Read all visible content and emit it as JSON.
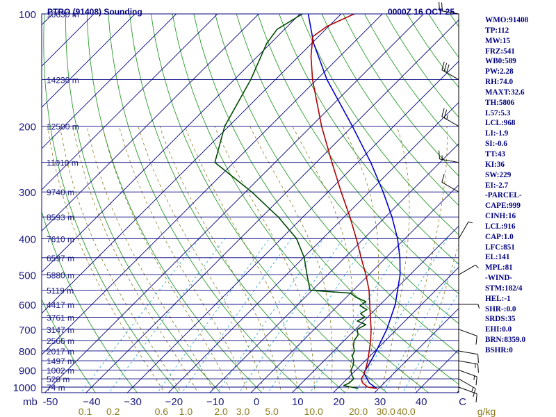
{
  "title": "PTRO (91408) Sounding",
  "datetime": "0000Z 16 OCT 25",
  "chart_data": {
    "type": "line",
    "pressure_levels_mb": [
      100,
      200,
      300,
      400,
      500,
      600,
      700,
      800,
      900,
      1000
    ],
    "pressure_tick_labels": [
      "100",
      "200",
      "300",
      "400",
      "500",
      "600",
      "700",
      "800",
      "900",
      "1000"
    ],
    "height_levels": [
      {
        "p": 100,
        "label": "16630 m"
      },
      {
        "p": 150,
        "label": "14230 m"
      },
      {
        "p": 200,
        "label": "12500 m"
      },
      {
        "p": 250,
        "label": "11010 m"
      },
      {
        "p": 300,
        "label": "9740 m"
      },
      {
        "p": 350,
        "label": "8593 m"
      },
      {
        "p": 400,
        "label": "7610 m"
      },
      {
        "p": 450,
        "label": "6597 m"
      },
      {
        "p": 500,
        "label": "5880 m"
      },
      {
        "p": 550,
        "label": "5119 m"
      },
      {
        "p": 600,
        "label": "4417 m"
      },
      {
        "p": 650,
        "label": "3761 m"
      },
      {
        "p": 700,
        "label": "3147 m"
      },
      {
        "p": 750,
        "label": "2566 m"
      },
      {
        "p": 800,
        "label": "2017 m"
      },
      {
        "p": 850,
        "label": "1497 m"
      },
      {
        "p": 900,
        "label": "1002 m"
      },
      {
        "p": 950,
        "label": "528 m"
      },
      {
        "p": 1000,
        "label": "74 m"
      }
    ],
    "temperature_ticks_c": [
      -50,
      -40,
      -30,
      -20,
      -10,
      0,
      10,
      20,
      30,
      40,
      50
    ],
    "temperature_tick_labels": [
      "-50",
      "−40",
      "−30",
      "−20",
      "−10",
      "0",
      "10",
      "20",
      "30",
      "40",
      "C"
    ],
    "x_axis_unit_label": "mb",
    "mixing_ratio_labels": [
      "0.1",
      "0.2",
      "0.6",
      "1.0",
      "2.0",
      "3.0",
      "5.0",
      "10.0",
      "20.0",
      "30.0",
      "40.0",
      "g/kg"
    ],
    "temperature_profile": [
      {
        "p": 1008,
        "t": 29.5
      },
      {
        "p": 1000,
        "t": 27.0
      },
      {
        "p": 975,
        "t": 24.8
      },
      {
        "p": 950,
        "t": 23.4
      },
      {
        "p": 925,
        "t": 23.0
      },
      {
        "p": 900,
        "t": 22.3
      },
      {
        "p": 850,
        "t": 20.6
      },
      {
        "p": 800,
        "t": 18.6
      },
      {
        "p": 750,
        "t": 16.4
      },
      {
        "p": 700,
        "t": 13.8
      },
      {
        "p": 650,
        "t": 10.7
      },
      {
        "p": 600,
        "t": 7.4
      },
      {
        "p": 550,
        "t": 3.8
      },
      {
        "p": 500,
        "t": -0.7
      },
      {
        "p": 450,
        "t": -6.0
      },
      {
        "p": 400,
        "t": -11.8
      },
      {
        "p": 350,
        "t": -18.6
      },
      {
        "p": 300,
        "t": -26.8
      },
      {
        "p": 250,
        "t": -36.2
      },
      {
        "p": 200,
        "t": -47.5
      },
      {
        "p": 150,
        "t": -61.0
      },
      {
        "p": 130,
        "t": -67.0
      },
      {
        "p": 115,
        "t": -71.4
      },
      {
        "p": 108,
        "t": -70.4
      },
      {
        "p": 100,
        "t": -66.8
      }
    ],
    "dewpoint_profile": [
      {
        "p": 1008,
        "t": 25.0
      },
      {
        "p": 1000,
        "t": 23.0
      },
      {
        "p": 990,
        "t": 20.8
      },
      {
        "p": 975,
        "t": 21.5
      },
      {
        "p": 950,
        "t": 21.6
      },
      {
        "p": 925,
        "t": 20.0
      },
      {
        "p": 900,
        "t": 18.8
      },
      {
        "p": 875,
        "t": 18.2
      },
      {
        "p": 850,
        "t": 17.2
      },
      {
        "p": 825,
        "t": 15.7
      },
      {
        "p": 800,
        "t": 15.0
      },
      {
        "p": 775,
        "t": 13.5
      },
      {
        "p": 750,
        "t": 12.4
      },
      {
        "p": 725,
        "t": 12.0
      },
      {
        "p": 700,
        "t": 10.4
      },
      {
        "p": 680,
        "t": 11.4
      },
      {
        "p": 665,
        "t": 8.4
      },
      {
        "p": 650,
        "t": 9.4
      },
      {
        "p": 635,
        "t": 7.4
      },
      {
        "p": 620,
        "t": 8.0
      },
      {
        "p": 605,
        "t": 5.4
      },
      {
        "p": 590,
        "t": 5.8
      },
      {
        "p": 575,
        "t": 2.4
      },
      {
        "p": 560,
        "t": 0.0
      },
      {
        "p": 550,
        "t": -10.5
      },
      {
        "p": 500,
        "t": -15.0
      },
      {
        "p": 450,
        "t": -19.8
      },
      {
        "p": 400,
        "t": -26.3
      },
      {
        "p": 350,
        "t": -36.0
      },
      {
        "p": 300,
        "t": -48.5
      },
      {
        "p": 250,
        "t": -64.6
      },
      {
        "p": 200,
        "t": -71.0
      },
      {
        "p": 150,
        "t": -76.0
      },
      {
        "p": 120,
        "t": -80.9
      },
      {
        "p": 110,
        "t": -81.8
      },
      {
        "p": 100,
        "t": -79.4
      }
    ],
    "parcel_profile": [
      {
        "p": 1008,
        "t": 29.5
      },
      {
        "p": 975,
        "t": 26.4
      },
      {
        "p": 916,
        "t": 22.6
      },
      {
        "p": 850,
        "t": 21.4
      },
      {
        "p": 800,
        "t": 20.3
      },
      {
        "p": 700,
        "t": 17.6
      },
      {
        "p": 600,
        "t": 13.6
      },
      {
        "p": 500,
        "t": 7.6
      },
      {
        "p": 450,
        "t": 3.4
      },
      {
        "p": 400,
        "t": -1.8
      },
      {
        "p": 350,
        "t": -8.4
      },
      {
        "p": 300,
        "t": -16.6
      },
      {
        "p": 250,
        "t": -26.8
      },
      {
        "p": 200,
        "t": -40.0
      },
      {
        "p": 150,
        "t": -57.5
      },
      {
        "p": 120,
        "t": -69.5
      },
      {
        "p": 100,
        "t": -78.0
      }
    ],
    "wind_barbs": [
      {
        "p": 1000,
        "dir": 110,
        "spd": 10
      },
      {
        "p": 950,
        "dir": 120,
        "spd": 15
      },
      {
        "p": 900,
        "dir": 110,
        "spd": 15
      },
      {
        "p": 850,
        "dir": 100,
        "spd": 15
      },
      {
        "p": 800,
        "dir": 100,
        "spd": 10
      },
      {
        "p": 700,
        "dir": 110,
        "spd": 10
      },
      {
        "p": 600,
        "dir": 90,
        "spd": 5
      },
      {
        "p": 500,
        "dir": 60,
        "spd": 5
      },
      {
        "p": 400,
        "dir": 30,
        "spd": 5
      },
      {
        "p": 300,
        "dir": 300,
        "spd": 10
      },
      {
        "p": 250,
        "dir": 280,
        "spd": 15
      },
      {
        "p": 200,
        "dir": 300,
        "spd": 25
      },
      {
        "p": 150,
        "dir": 300,
        "spd": 30
      },
      {
        "p": 100,
        "dir": 280,
        "spd": 20
      }
    ],
    "colors": {
      "background": "#ffffff",
      "frame": "#000080",
      "isobar": "#000080",
      "isotherm": "#000080",
      "dry_adiabat": "#2a9a2a",
      "mixing_ratio": "#30a8d0",
      "moist_adiabat": "#8a7a20",
      "temperature": "#b00000",
      "dewpoint": "#004a00",
      "parcel": "#0000cc",
      "barb": "#000000"
    }
  },
  "indices": [
    "WMO:91408",
    "TP:112",
    "MW:15",
    "FRZ:541",
    "WB0:589",
    "PW:2.28",
    "RH:74.0",
    "MAXT:32.6",
    "TH:5806",
    "L57:5.3",
    "LCL:968",
    "LI:-1.9",
    "SI:-0.6",
    "TT:43",
    "KI:36",
    "SW:229",
    "EI:-2.7",
    "-PARCEL-",
    "CAPE:999",
    "CINH:16",
    "LCL:916",
    "CAP:1.0",
    "LFC:851",
    "EL:141",
    "MPL:81",
    "-WIND-",
    "STM:182/4",
    "HEL:-1",
    "SHR-:0.0",
    "SRDS:35",
    "EHI:0.0",
    "BRN:8359.0",
    "BSHR:0"
  ]
}
